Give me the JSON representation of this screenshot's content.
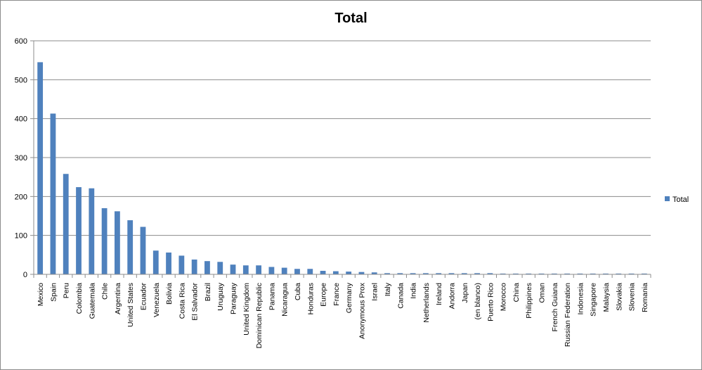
{
  "chart_data": {
    "type": "bar",
    "title": "Total",
    "xlabel": "",
    "ylabel": "",
    "ylim": [
      0,
      600
    ],
    "yticks": [
      "0",
      "100",
      "200",
      "300",
      "400",
      "500",
      "600"
    ],
    "grid": true,
    "legend_position": "right",
    "categories": [
      "Mexico",
      "Spain",
      "Peru",
      "Colombia",
      "Guatemala",
      "Chile",
      "Argentina",
      "United States",
      "Ecuador",
      "Venezuela",
      "Bolivia",
      "Costa Rica",
      "El Salvador",
      "Brazil",
      "Uruguay",
      "Paraguay",
      "United Kingdom",
      "Dominican Republic",
      "Panama",
      "Nicaragua",
      "Cuba",
      "Honduras",
      "Europe",
      "France",
      "Germany",
      "Anonymous Prox",
      "Israel",
      "Italy",
      "Canada",
      "India",
      "Netherlands",
      "Ireland",
      "Andorra",
      "Japan",
      "(en blanco)",
      "Puerto Rico",
      "Morocco",
      "China",
      "Philippines",
      "Oman",
      "French Guiana",
      "Russian Federation",
      "Indonesia",
      "Singapore",
      "Malaysia",
      "Slovakia",
      "Slovenia",
      "Romania"
    ],
    "series": [
      {
        "name": "Total",
        "color": "#4f81bd",
        "values": [
          545,
          413,
          258,
          224,
          221,
          170,
          162,
          139,
          122,
          61,
          56,
          48,
          38,
          34,
          32,
          25,
          23,
          23,
          19,
          17,
          14,
          14,
          9,
          8,
          7,
          6,
          5,
          3,
          3,
          3,
          3,
          3,
          3,
          3,
          3,
          3,
          2,
          2,
          2,
          2,
          2,
          2,
          2,
          2,
          2,
          2,
          2,
          2
        ]
      }
    ]
  }
}
